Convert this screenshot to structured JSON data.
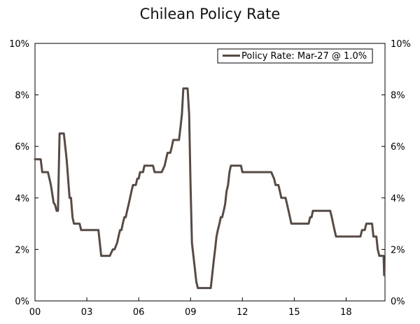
{
  "chart_data": {
    "type": "line",
    "title": "Chilean Policy Rate",
    "xlabel": "",
    "ylabel": "",
    "x_ticks": [
      {
        "value": 2000,
        "label": "00"
      },
      {
        "value": 2003,
        "label": "03"
      },
      {
        "value": 2006,
        "label": "06"
      },
      {
        "value": 2009,
        "label": "09"
      },
      {
        "value": 2012,
        "label": "12"
      },
      {
        "value": 2015,
        "label": "15"
      },
      {
        "value": 2018,
        "label": "18"
      }
    ],
    "xlim": [
      2000,
      2020.25
    ],
    "ylim": [
      0,
      10
    ],
    "y_ticks": [
      "0%",
      "2%",
      "4%",
      "6%",
      "8%",
      "10%"
    ],
    "y_tick_values": [
      0,
      2,
      4,
      6,
      8,
      10
    ],
    "grid": false,
    "legend_position": "top-right",
    "series_color": "#574b45",
    "series": [
      {
        "name": "Policy Rate: Mar-27 @ 1.0%",
        "points": [
          [
            2000.0,
            5.5
          ],
          [
            2000.33,
            5.5
          ],
          [
            2000.42,
            5.0
          ],
          [
            2000.75,
            5.0
          ],
          [
            2000.92,
            4.5
          ],
          [
            2001.08,
            3.8
          ],
          [
            2001.15,
            3.75
          ],
          [
            2001.25,
            3.5
          ],
          [
            2001.33,
            3.5
          ],
          [
            2001.42,
            6.5
          ],
          [
            2001.67,
            6.5
          ],
          [
            2001.83,
            5.5
          ],
          [
            2002.0,
            4.0
          ],
          [
            2002.08,
            4.0
          ],
          [
            2002.17,
            3.25
          ],
          [
            2002.25,
            3.0
          ],
          [
            2002.58,
            3.0
          ],
          [
            2002.67,
            2.75
          ],
          [
            2003.67,
            2.75
          ],
          [
            2003.83,
            1.75
          ],
          [
            2004.33,
            1.75
          ],
          [
            2004.5,
            2.0
          ],
          [
            2004.6,
            2.0
          ],
          [
            2004.75,
            2.25
          ],
          [
            2004.83,
            2.5
          ],
          [
            2004.92,
            2.75
          ],
          [
            2005.0,
            2.75
          ],
          [
            2005.08,
            3.0
          ],
          [
            2005.17,
            3.25
          ],
          [
            2005.25,
            3.25
          ],
          [
            2005.33,
            3.5
          ],
          [
            2005.42,
            3.75
          ],
          [
            2005.5,
            4.0
          ],
          [
            2005.58,
            4.25
          ],
          [
            2005.67,
            4.5
          ],
          [
            2005.83,
            4.5
          ],
          [
            2005.92,
            4.75
          ],
          [
            2006.0,
            4.75
          ],
          [
            2006.08,
            5.0
          ],
          [
            2006.25,
            5.0
          ],
          [
            2006.33,
            5.25
          ],
          [
            2006.83,
            5.25
          ],
          [
            2006.92,
            5.0
          ],
          [
            2007.33,
            5.0
          ],
          [
            2007.5,
            5.25
          ],
          [
            2007.58,
            5.5
          ],
          [
            2007.67,
            5.75
          ],
          [
            2007.83,
            5.75
          ],
          [
            2007.92,
            6.0
          ],
          [
            2008.0,
            6.25
          ],
          [
            2008.33,
            6.25
          ],
          [
            2008.42,
            6.75
          ],
          [
            2008.5,
            7.25
          ],
          [
            2008.58,
            8.25
          ],
          [
            2008.83,
            8.25
          ],
          [
            2008.92,
            7.25
          ],
          [
            2009.0,
            4.5
          ],
          [
            2009.08,
            2.25
          ],
          [
            2009.25,
            1.25
          ],
          [
            2009.33,
            0.75
          ],
          [
            2009.42,
            0.5
          ],
          [
            2010.17,
            0.5
          ],
          [
            2010.25,
            1.0
          ],
          [
            2010.33,
            1.5
          ],
          [
            2010.42,
            2.0
          ],
          [
            2010.5,
            2.5
          ],
          [
            2010.58,
            2.75
          ],
          [
            2010.67,
            3.0
          ],
          [
            2010.75,
            3.25
          ],
          [
            2010.83,
            3.25
          ],
          [
            2010.92,
            3.5
          ],
          [
            2011.0,
            3.75
          ],
          [
            2011.08,
            4.25
          ],
          [
            2011.17,
            4.5
          ],
          [
            2011.25,
            5.0
          ],
          [
            2011.33,
            5.25
          ],
          [
            2011.92,
            5.25
          ],
          [
            2012.0,
            5.0
          ],
          [
            2013.67,
            5.0
          ],
          [
            2013.83,
            4.75
          ],
          [
            2013.92,
            4.5
          ],
          [
            2014.08,
            4.5
          ],
          [
            2014.17,
            4.25
          ],
          [
            2014.25,
            4.0
          ],
          [
            2014.5,
            4.0
          ],
          [
            2014.67,
            3.5
          ],
          [
            2014.83,
            3.0
          ],
          [
            2015.83,
            3.0
          ],
          [
            2015.92,
            3.25
          ],
          [
            2016.0,
            3.25
          ],
          [
            2016.08,
            3.5
          ],
          [
            2017.08,
            3.5
          ],
          [
            2017.17,
            3.25
          ],
          [
            2017.25,
            3.0
          ],
          [
            2017.33,
            2.75
          ],
          [
            2017.42,
            2.5
          ],
          [
            2018.83,
            2.5
          ],
          [
            2018.92,
            2.75
          ],
          [
            2019.08,
            2.75
          ],
          [
            2019.17,
            3.0
          ],
          [
            2019.5,
            3.0
          ],
          [
            2019.58,
            2.5
          ],
          [
            2019.75,
            2.5
          ],
          [
            2019.83,
            2.0
          ],
          [
            2019.92,
            1.75
          ],
          [
            2020.17,
            1.75
          ],
          [
            2020.2,
            1.0
          ]
        ]
      }
    ]
  }
}
